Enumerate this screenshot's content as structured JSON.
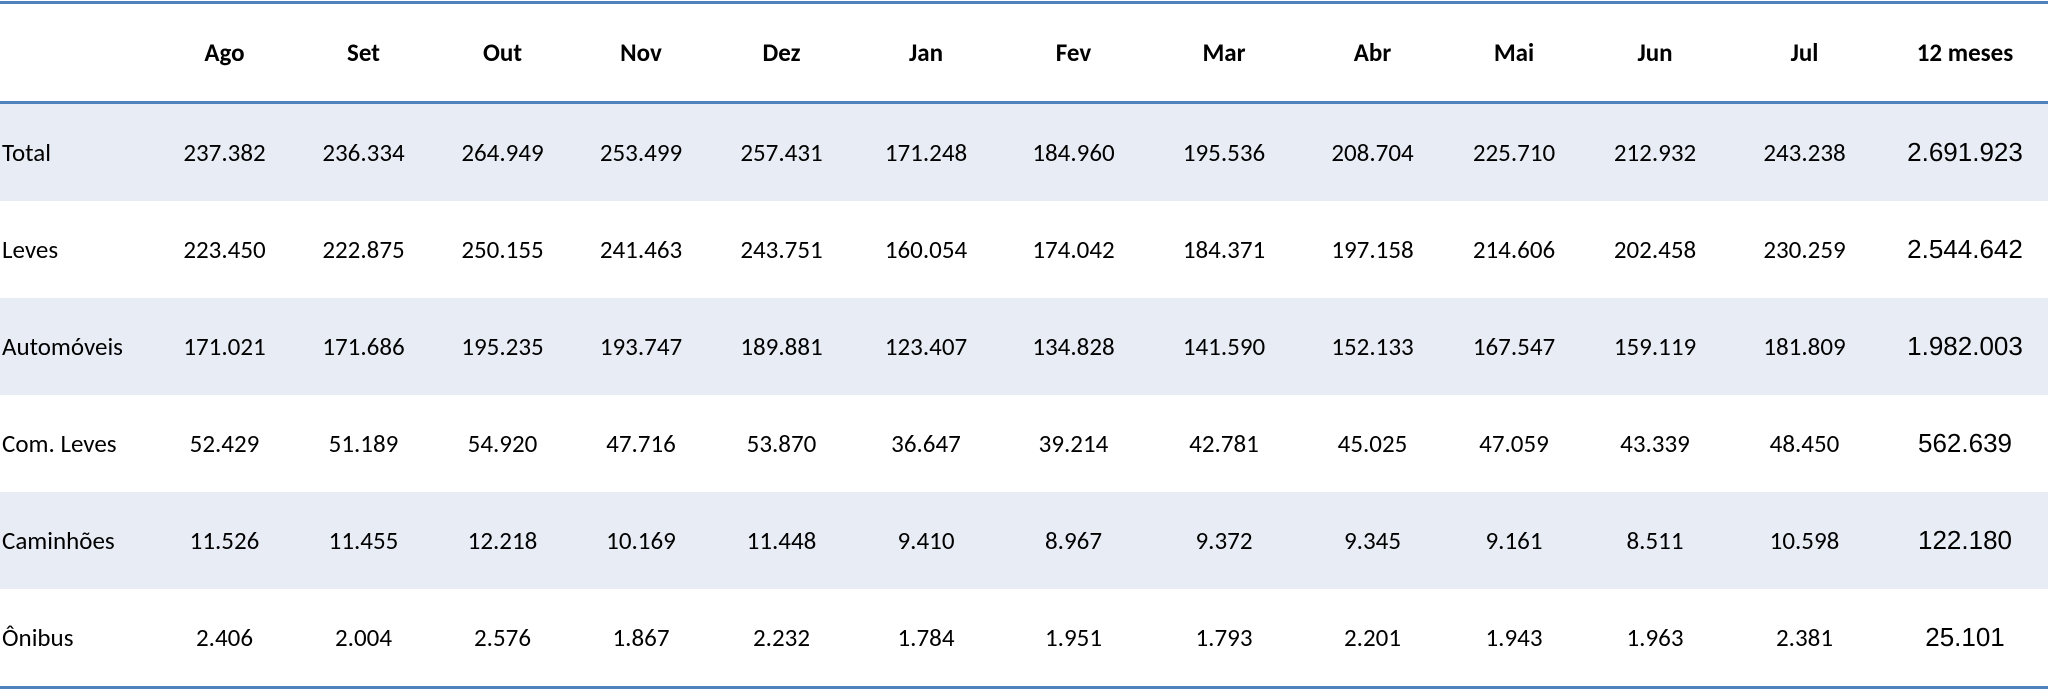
{
  "table": {
    "columns": [
      "Ago",
      "Set",
      "Out",
      "Nov",
      "Dez",
      "Jan",
      "Fev",
      "Mar",
      "Abr",
      "Mai",
      "Jun",
      "Jul",
      "12 meses"
    ],
    "rows": [
      {
        "label": "Total",
        "values": [
          "237.382",
          "236.334",
          "264.949",
          "253.499",
          "257.431",
          "171.248",
          "184.960",
          "195.536",
          "208.704",
          "225.710",
          "212.932",
          "243.238",
          "2.691.923"
        ]
      },
      {
        "label": "Leves",
        "values": [
          "223.450",
          "222.875",
          "250.155",
          "241.463",
          "243.751",
          "160.054",
          "174.042",
          "184.371",
          "197.158",
          "214.606",
          "202.458",
          "230.259",
          "2.544.642"
        ]
      },
      {
        "label": "Automóveis",
        "values": [
          "171.021",
          "171.686",
          "195.235",
          "193.747",
          "189.881",
          "123.407",
          "134.828",
          "141.590",
          "152.133",
          "167.547",
          "159.119",
          "181.809",
          "1.982.003"
        ]
      },
      {
        "label": "Com. Leves",
        "values": [
          "52.429",
          "51.189",
          "54.920",
          "47.716",
          "53.870",
          "36.647",
          "39.214",
          "42.781",
          "45.025",
          "47.059",
          "43.339",
          "48.450",
          "562.639"
        ]
      },
      {
        "label": "Caminhões",
        "values": [
          "11.526",
          "11.455",
          "12.218",
          "10.169",
          "11.448",
          "9.410",
          "8.967",
          "9.372",
          "9.345",
          "9.161",
          "8.511",
          "10.598",
          "122.180"
        ]
      },
      {
        "label": "Ônibus",
        "values": [
          "2.406",
          "2.004",
          "2.576",
          "1.867",
          "2.232",
          "1.784",
          "1.951",
          "1.793",
          "2.201",
          "1.943",
          "1.963",
          "2.381",
          "25.101"
        ]
      }
    ]
  }
}
